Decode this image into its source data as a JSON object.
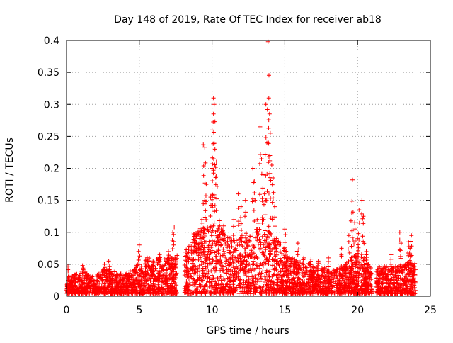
{
  "chart_data": {
    "type": "scatter",
    "title": "Day 148 of 2019, Rate Of TEC Index for receiver ab18",
    "xlabel": "GPS time / hours",
    "ylabel": "ROTI / TECUs",
    "xlim": [
      0,
      25
    ],
    "ylim": [
      0,
      0.4
    ],
    "x_ticks": [
      0,
      5,
      10,
      15,
      20,
      25
    ],
    "y_ticks": [
      0,
      0.05,
      0.1,
      0.15,
      0.2,
      0.25,
      0.3,
      0.35,
      0.4
    ],
    "x_tick_labels": [
      "0",
      "5",
      "10",
      "15",
      "20",
      "25"
    ],
    "y_tick_labels": [
      "0",
      "0.05",
      "0.1",
      "0.15",
      "0.2",
      "0.25",
      "0.3",
      "0.35",
      "0.4"
    ],
    "grid": true,
    "marker": "+",
    "marker_color": "#ff0000",
    "data_gaps_hours": [
      [
        7.6,
        8.1
      ],
      [
        21.0,
        21.3
      ],
      [
        24.0,
        25.0
      ]
    ],
    "series": [
      {
        "name": "ROTI",
        "envelope": [
          [
            0.0,
            0.02
          ],
          [
            0.5,
            0.025
          ],
          [
            1.0,
            0.03
          ],
          [
            1.5,
            0.025
          ],
          [
            2.0,
            0.022
          ],
          [
            2.5,
            0.03
          ],
          [
            3.0,
            0.032
          ],
          [
            3.5,
            0.025
          ],
          [
            4.0,
            0.025
          ],
          [
            4.5,
            0.03
          ],
          [
            5.0,
            0.04
          ],
          [
            5.5,
            0.045
          ],
          [
            6.0,
            0.045
          ],
          [
            6.5,
            0.045
          ],
          [
            7.0,
            0.045
          ],
          [
            7.5,
            0.05
          ],
          [
            8.2,
            0.06
          ],
          [
            8.5,
            0.07
          ],
          [
            9.0,
            0.08
          ],
          [
            9.5,
            0.085
          ],
          [
            10.0,
            0.09
          ],
          [
            10.5,
            0.085
          ],
          [
            11.0,
            0.075
          ],
          [
            11.5,
            0.07
          ],
          [
            12.0,
            0.07
          ],
          [
            12.5,
            0.075
          ],
          [
            13.0,
            0.08
          ],
          [
            13.5,
            0.085
          ],
          [
            14.0,
            0.085
          ],
          [
            14.5,
            0.07
          ],
          [
            15.0,
            0.055
          ],
          [
            15.5,
            0.045
          ],
          [
            16.0,
            0.04
          ],
          [
            16.5,
            0.04
          ],
          [
            17.0,
            0.035
          ],
          [
            17.5,
            0.035
          ],
          [
            18.0,
            0.03
          ],
          [
            18.5,
            0.03
          ],
          [
            19.0,
            0.035
          ],
          [
            19.5,
            0.045
          ],
          [
            20.0,
            0.05
          ],
          [
            20.5,
            0.045
          ],
          [
            21.0,
            0.03
          ],
          [
            21.5,
            0.035
          ],
          [
            22.0,
            0.035
          ],
          [
            22.5,
            0.035
          ],
          [
            23.0,
            0.035
          ],
          [
            23.5,
            0.04
          ],
          [
            24.0,
            0.04
          ]
        ],
        "spikes": [
          [
            0.1,
            0.047
          ],
          [
            1.1,
            0.048
          ],
          [
            2.6,
            0.05
          ],
          [
            2.9,
            0.055
          ],
          [
            5.0,
            0.08
          ],
          [
            6.4,
            0.065
          ],
          [
            7.0,
            0.07
          ],
          [
            7.4,
            0.108
          ],
          [
            7.3,
            0.1
          ],
          [
            8.8,
            0.097
          ],
          [
            9.3,
            0.12
          ],
          [
            9.5,
            0.15
          ],
          [
            9.6,
            0.175
          ],
          [
            9.4,
            0.237
          ],
          [
            9.5,
            0.233
          ],
          [
            9.9,
            0.155
          ],
          [
            10.0,
            0.2
          ],
          [
            10.1,
            0.31
          ],
          [
            10.15,
            0.3
          ],
          [
            10.1,
            0.285
          ],
          [
            10.2,
            0.273
          ],
          [
            10.0,
            0.26
          ],
          [
            10.2,
            0.23
          ],
          [
            10.3,
            0.21
          ],
          [
            10.5,
            0.118
          ],
          [
            10.8,
            0.11
          ],
          [
            11.5,
            0.12
          ],
          [
            11.8,
            0.16
          ],
          [
            12.0,
            0.14
          ],
          [
            12.3,
            0.15
          ],
          [
            12.8,
            0.2
          ],
          [
            12.9,
            0.18
          ],
          [
            13.1,
            0.12
          ],
          [
            13.3,
            0.265
          ],
          [
            13.4,
            0.215
          ],
          [
            13.5,
            0.19
          ],
          [
            13.6,
            0.16
          ],
          [
            13.7,
            0.3
          ],
          [
            13.8,
            0.292
          ],
          [
            13.85,
            0.398
          ],
          [
            13.9,
            0.31
          ],
          [
            13.95,
            0.285
          ],
          [
            14.0,
            0.255
          ],
          [
            14.1,
            0.205
          ],
          [
            14.2,
            0.185
          ],
          [
            14.3,
            0.14
          ],
          [
            15.0,
            0.105
          ],
          [
            15.9,
            0.083
          ],
          [
            16.3,
            0.06
          ],
          [
            16.8,
            0.058
          ],
          [
            17.3,
            0.055
          ],
          [
            18.0,
            0.06
          ],
          [
            18.9,
            0.075
          ],
          [
            19.4,
            0.095
          ],
          [
            19.6,
            0.13
          ],
          [
            19.65,
            0.182
          ],
          [
            19.8,
            0.115
          ],
          [
            20.0,
            0.09
          ],
          [
            20.1,
            0.135
          ],
          [
            20.3,
            0.15
          ],
          [
            20.4,
            0.125
          ],
          [
            20.6,
            0.07
          ],
          [
            22.3,
            0.065
          ],
          [
            22.9,
            0.1
          ],
          [
            23.0,
            0.083
          ],
          [
            23.5,
            0.085
          ],
          [
            23.7,
            0.095
          ],
          [
            23.6,
            0.075
          ]
        ]
      }
    ]
  }
}
